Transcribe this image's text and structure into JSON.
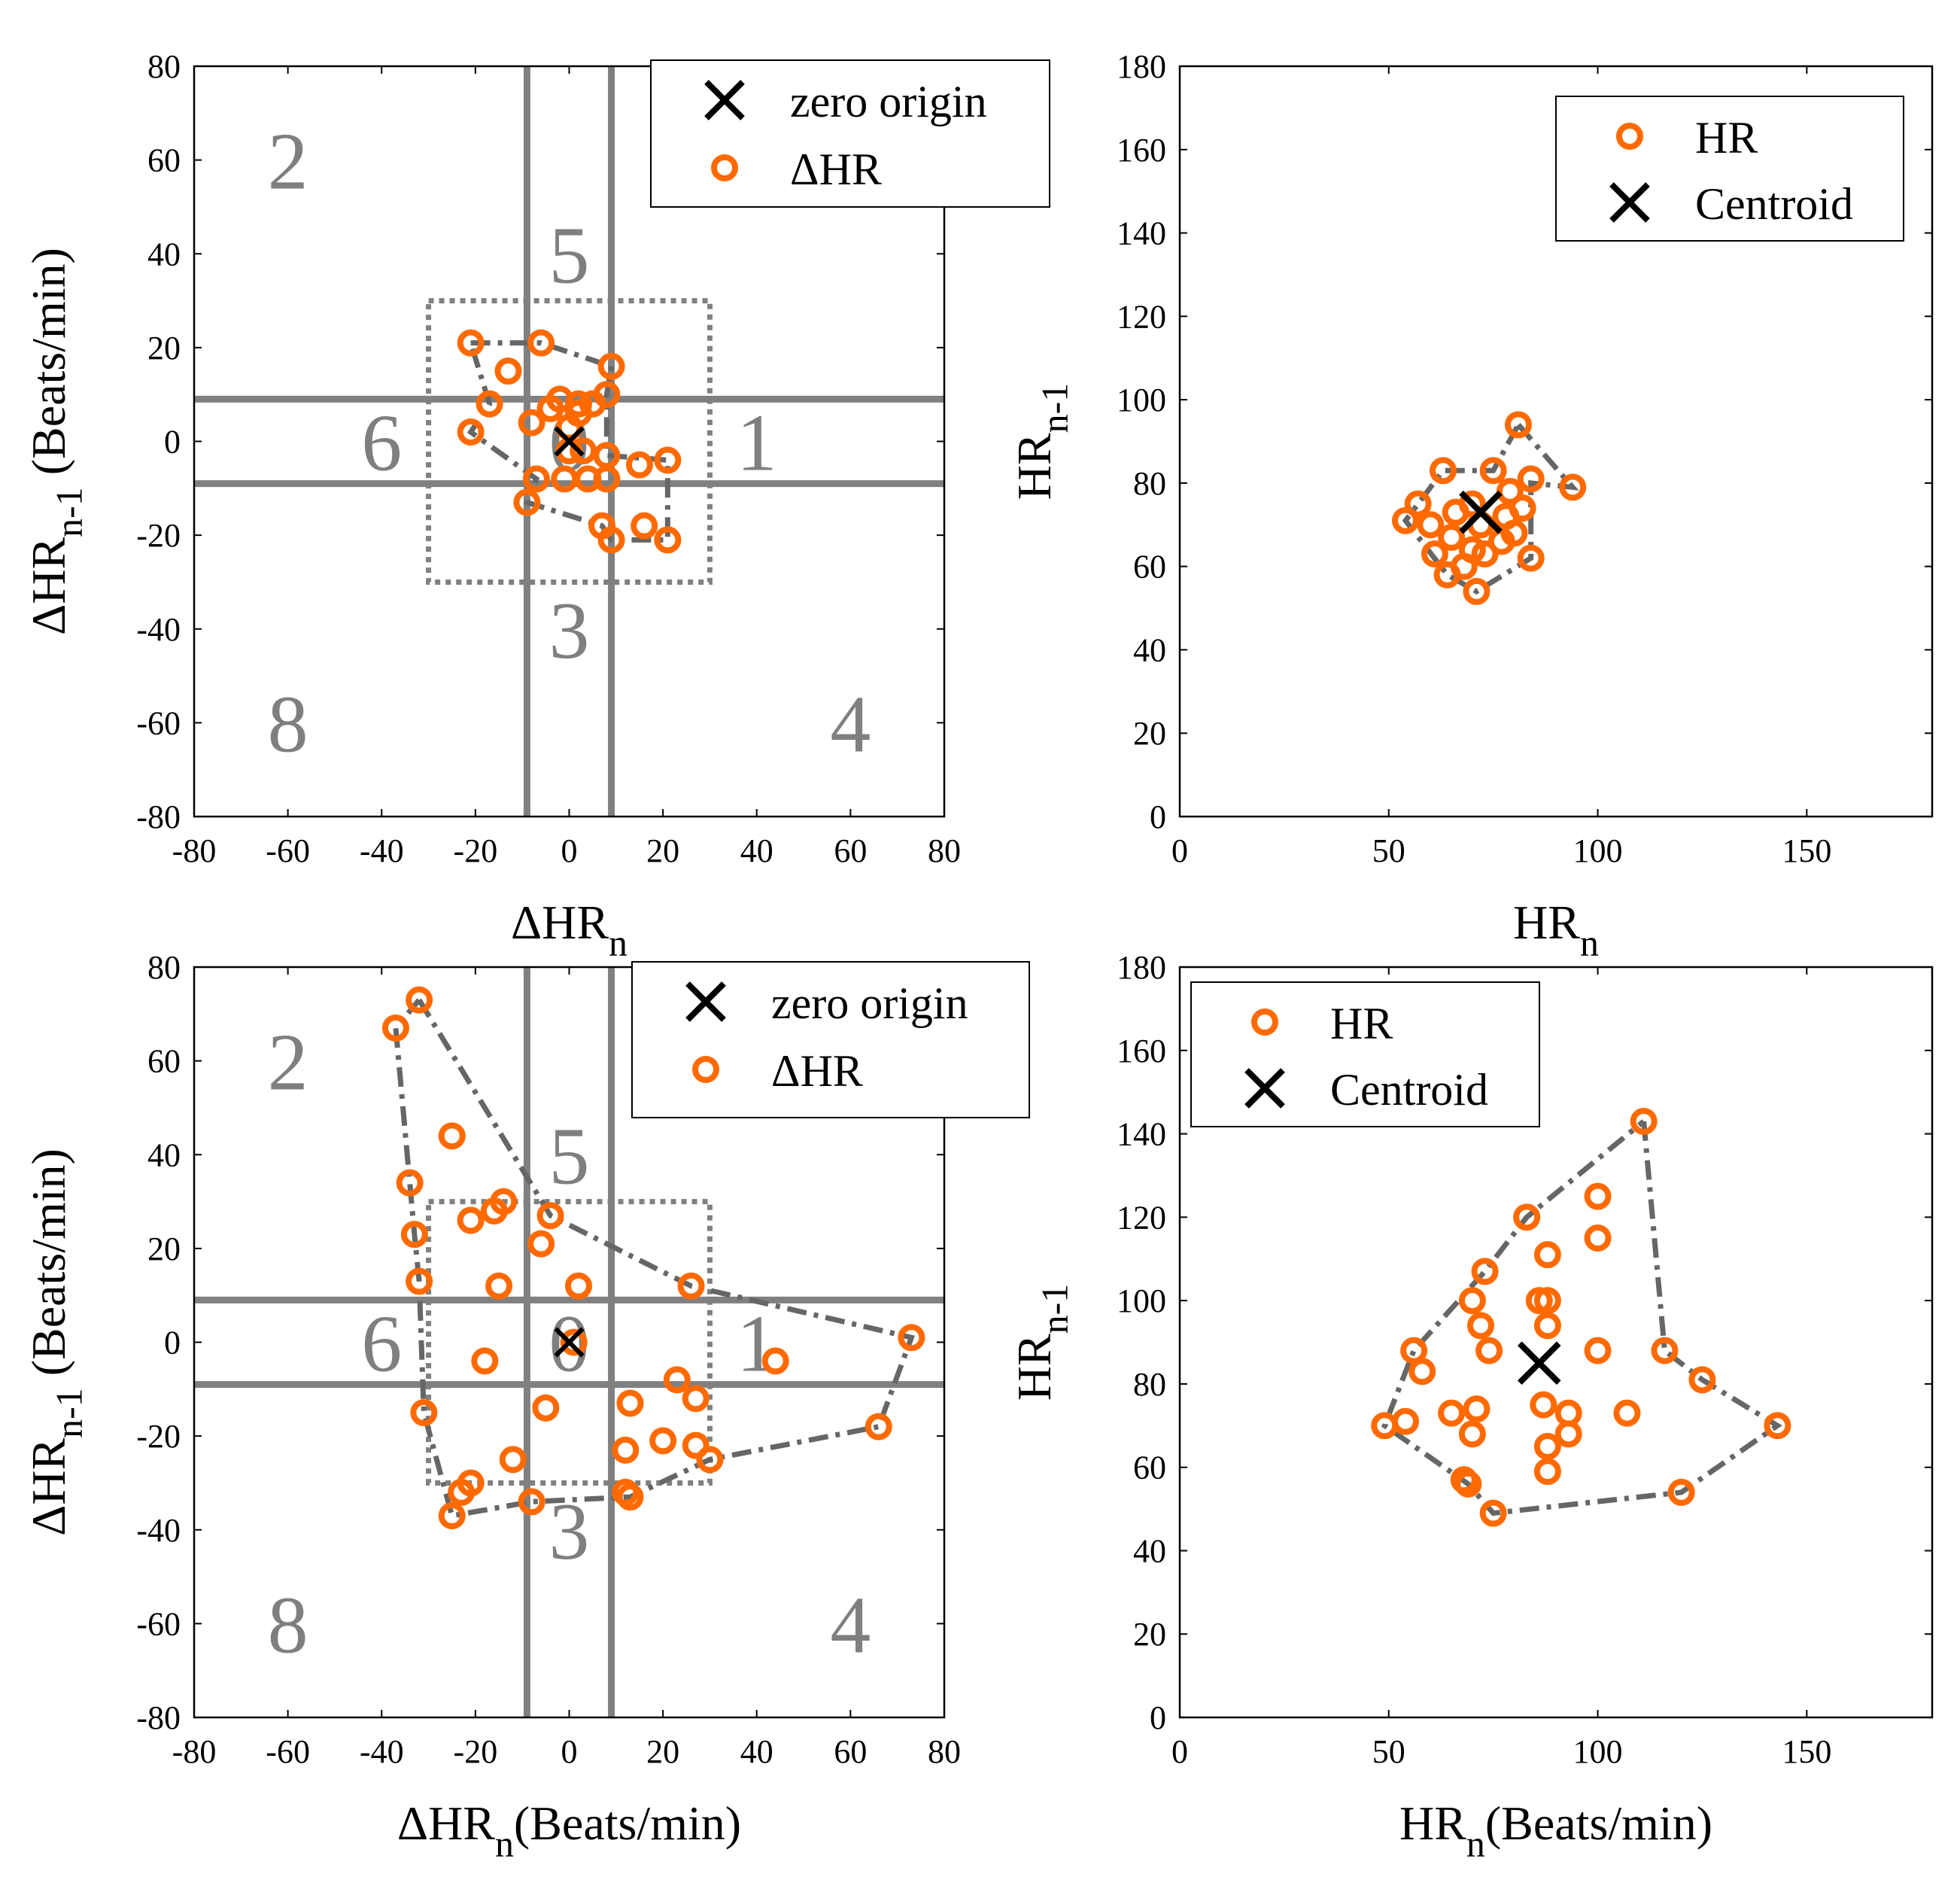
{
  "colors": {
    "marker": "#ff6a00",
    "grid_lines": "#808080",
    "region_labels": "#7f7f7f",
    "hull": "#666666",
    "text": "#000000"
  },
  "chart_data": [
    {
      "id": "top-left",
      "type": "scatter",
      "xlim": [
        -80,
        80
      ],
      "ylim": [
        -80,
        80
      ],
      "xticks": [
        "-80",
        "-60",
        "-40",
        "-20",
        "0",
        "20",
        "40",
        "60",
        "80"
      ],
      "yticks": [
        "-80",
        "-60",
        "-40",
        "-20",
        "0",
        "20",
        "40",
        "60",
        "80"
      ],
      "xlabel": {
        "main": "ΔHR",
        "sub": "n",
        "suffix": ""
      },
      "ylabel": {
        "main": "ΔHR",
        "sub": "n-1",
        "suffix": " (Beats/min)"
      },
      "legend": {
        "position": "top-right",
        "items": [
          {
            "label": "zero origin",
            "marker": "x"
          },
          {
            "label": "ΔHR",
            "marker": "circle"
          }
        ]
      },
      "region_lines": {
        "x": [
          -9,
          9
        ],
        "y": [
          -9,
          9
        ]
      },
      "dotted_box": [
        -30,
        30,
        -30,
        30
      ],
      "region_labels": [
        {
          "text": "1",
          "x": 40,
          "y": 0
        },
        {
          "text": "2",
          "x": -60,
          "y": 60
        },
        {
          "text": "3",
          "x": 0,
          "y": -40
        },
        {
          "text": "4",
          "x": 60,
          "y": -60
        },
        {
          "text": "5",
          "x": 0,
          "y": 40
        },
        {
          "text": "6",
          "x": -40,
          "y": 0
        },
        {
          "text": "8",
          "x": -60,
          "y": -60
        },
        {
          "text": "0",
          "x": 0,
          "y": 0
        }
      ],
      "marker_x": [
        0,
        0
      ],
      "points": [
        [
          -21,
          21
        ],
        [
          -6,
          21
        ],
        [
          -13,
          15
        ],
        [
          9,
          16
        ],
        [
          -17,
          8
        ],
        [
          -21,
          2
        ],
        [
          -8,
          4
        ],
        [
          -4,
          7
        ],
        [
          -2,
          9
        ],
        [
          2,
          8
        ],
        [
          5,
          8
        ],
        [
          8,
          10
        ],
        [
          2,
          6
        ],
        [
          0,
          3
        ],
        [
          0,
          -2
        ],
        [
          3,
          -2
        ],
        [
          -7,
          -8
        ],
        [
          -9,
          -13
        ],
        [
          -1,
          -8
        ],
        [
          4,
          -8
        ],
        [
          8,
          -3
        ],
        [
          15,
          -5
        ],
        [
          21,
          -4
        ],
        [
          8,
          -8
        ],
        [
          7,
          -18
        ],
        [
          16,
          -18
        ],
        [
          9,
          -21
        ],
        [
          21,
          -21
        ]
      ],
      "hull": [
        [
          -21,
          21
        ],
        [
          -6,
          21
        ],
        [
          9,
          16
        ],
        [
          8,
          10
        ],
        [
          8,
          -3
        ],
        [
          21,
          -4
        ],
        [
          21,
          -21
        ],
        [
          9,
          -21
        ],
        [
          7,
          -18
        ],
        [
          -9,
          -13
        ],
        [
          -7,
          -8
        ],
        [
          -21,
          2
        ],
        [
          -17,
          8
        ],
        [
          -21,
          21
        ]
      ]
    },
    {
      "id": "top-right",
      "type": "scatter",
      "xlim": [
        0,
        180
      ],
      "ylim": [
        0,
        180
      ],
      "xticks": [
        "0",
        "50",
        "100",
        "150"
      ],
      "yticks": [
        "0",
        "20",
        "40",
        "60",
        "80",
        "100",
        "120",
        "140",
        "160",
        "180"
      ],
      "xlabel": {
        "main": "HR",
        "sub": "n",
        "suffix": ""
      },
      "ylabel": {
        "main": "HR",
        "sub": "n-1",
        "suffix": ""
      },
      "legend": {
        "position": "top-right",
        "items": [
          {
            "label": "HR",
            "marker": "circle"
          },
          {
            "label": "Centroid",
            "marker": "x"
          }
        ]
      },
      "marker_x": [
        72,
        73
      ],
      "points": [
        [
          81,
          94
        ],
        [
          63,
          83
        ],
        [
          75,
          83
        ],
        [
          57,
          75
        ],
        [
          70,
          75
        ],
        [
          79,
          78
        ],
        [
          84,
          81
        ],
        [
          94,
          79
        ],
        [
          54,
          71
        ],
        [
          60,
          70
        ],
        [
          66,
          73
        ],
        [
          72,
          70
        ],
        [
          78,
          72
        ],
        [
          82,
          74
        ],
        [
          65,
          67
        ],
        [
          70,
          64
        ],
        [
          73,
          63
        ],
        [
          77,
          66
        ],
        [
          80,
          68
        ],
        [
          61,
          63
        ],
        [
          64,
          58
        ],
        [
          71,
          54
        ],
        [
          84,
          62
        ],
        [
          68,
          60
        ]
      ],
      "hull": [
        [
          81,
          94
        ],
        [
          94,
          79
        ],
        [
          84,
          80
        ],
        [
          84,
          62
        ],
        [
          71,
          54
        ],
        [
          64,
          58
        ],
        [
          54,
          71
        ],
        [
          57,
          75
        ],
        [
          63,
          83
        ],
        [
          75,
          83
        ],
        [
          81,
          94
        ]
      ]
    },
    {
      "id": "bottom-left",
      "type": "scatter",
      "xlim": [
        -80,
        80
      ],
      "ylim": [
        -80,
        80
      ],
      "xticks": [
        "-80",
        "-60",
        "-40",
        "-20",
        "0",
        "20",
        "40",
        "60",
        "80"
      ],
      "yticks": [
        "-80",
        "-60",
        "-40",
        "-20",
        "0",
        "20",
        "40",
        "60",
        "80"
      ],
      "xlabel": {
        "main": "ΔHR",
        "sub": "n",
        "suffix": "(Beats/min)"
      },
      "ylabel": {
        "main": "ΔHR",
        "sub": "n-1",
        "suffix": " (Beats/min)"
      },
      "legend": {
        "position": "top-right",
        "items": [
          {
            "label": "zero origin",
            "marker": "x"
          },
          {
            "label": "ΔHR",
            "marker": "circle"
          }
        ]
      },
      "region_lines": {
        "x": [
          -9,
          9
        ],
        "y": [
          -9,
          9
        ]
      },
      "dotted_box": [
        -30,
        30,
        -30,
        30
      ],
      "region_labels": [
        {
          "text": "1",
          "x": 40,
          "y": 0
        },
        {
          "text": "2",
          "x": -60,
          "y": 60
        },
        {
          "text": "3",
          "x": 0,
          "y": -40
        },
        {
          "text": "4",
          "x": 60,
          "y": -60
        },
        {
          "text": "5",
          "x": 0,
          "y": 40
        },
        {
          "text": "6",
          "x": -40,
          "y": 0
        },
        {
          "text": "8",
          "x": -60,
          "y": -60
        },
        {
          "text": "0",
          "x": 0,
          "y": 0
        }
      ],
      "marker_x": [
        0,
        0
      ],
      "points": [
        [
          -32,
          73
        ],
        [
          -37,
          67
        ],
        [
          -25,
          44
        ],
        [
          -34,
          34
        ],
        [
          -33,
          23
        ],
        [
          -32,
          13
        ],
        [
          -21,
          26
        ],
        [
          -16,
          28
        ],
        [
          -14,
          30
        ],
        [
          -4,
          27
        ],
        [
          -6,
          21
        ],
        [
          -15,
          12
        ],
        [
          2,
          12
        ],
        [
          26,
          12
        ],
        [
          73,
          1
        ],
        [
          44,
          -4
        ],
        [
          -18,
          -4
        ],
        [
          1,
          0
        ],
        [
          -5,
          -14
        ],
        [
          13,
          -13
        ],
        [
          23,
          -8
        ],
        [
          27,
          -12
        ],
        [
          20,
          -21
        ],
        [
          27,
          -22
        ],
        [
          30,
          -25
        ],
        [
          12,
          -23
        ],
        [
          -31,
          -15
        ],
        [
          -12,
          -25
        ],
        [
          -21,
          -30
        ],
        [
          -23,
          -32
        ],
        [
          -25,
          -37
        ],
        [
          -8,
          -34
        ],
        [
          12,
          -32
        ],
        [
          13,
          -33
        ],
        [
          66,
          -18
        ]
      ],
      "hull": [
        [
          -32,
          73
        ],
        [
          -4,
          27
        ],
        [
          26,
          12
        ],
        [
          73,
          1
        ],
        [
          66,
          -18
        ],
        [
          30,
          -25
        ],
        [
          13,
          -33
        ],
        [
          -8,
          -34
        ],
        [
          -25,
          -37
        ],
        [
          -31,
          -15
        ],
        [
          -32,
          13
        ],
        [
          -33,
          23
        ],
        [
          -34,
          34
        ],
        [
          -37,
          67
        ],
        [
          -32,
          73
        ]
      ]
    },
    {
      "id": "bottom-right",
      "type": "scatter",
      "xlim": [
        0,
        180
      ],
      "ylim": [
        0,
        180
      ],
      "xticks": [
        "0",
        "50",
        "100",
        "150"
      ],
      "yticks": [
        "0",
        "20",
        "40",
        "60",
        "80",
        "100",
        "120",
        "140",
        "160",
        "180"
      ],
      "xlabel": {
        "main": "HR",
        "sub": "n",
        "suffix": "(Beats/min)"
      },
      "ylabel": {
        "main": "HR",
        "sub": "n-1",
        "suffix": ""
      },
      "legend": {
        "position": "top-left",
        "items": [
          {
            "label": "HR",
            "marker": "circle"
          },
          {
            "label": "Centroid",
            "marker": "x"
          }
        ]
      },
      "marker_x": [
        86,
        85
      ],
      "points": [
        [
          111,
          143
        ],
        [
          100,
          125
        ],
        [
          83,
          120
        ],
        [
          100,
          115
        ],
        [
          88,
          111
        ],
        [
          73,
          107
        ],
        [
          70,
          100
        ],
        [
          86,
          100
        ],
        [
          88,
          100
        ],
        [
          72,
          94
        ],
        [
          88,
          94
        ],
        [
          56,
          88
        ],
        [
          74,
          88
        ],
        [
          100,
          88
        ],
        [
          116,
          88
        ],
        [
          58,
          83
        ],
        [
          125,
          81
        ],
        [
          87,
          75
        ],
        [
          93,
          73
        ],
        [
          65,
          73
        ],
        [
          71,
          74
        ],
        [
          107,
          73
        ],
        [
          49,
          70
        ],
        [
          54,
          71
        ],
        [
          70,
          68
        ],
        [
          93,
          68
        ],
        [
          143,
          70
        ],
        [
          88,
          65
        ],
        [
          68,
          57
        ],
        [
          69,
          56
        ],
        [
          88,
          59
        ],
        [
          120,
          54
        ],
        [
          75,
          49
        ]
      ],
      "hull": [
        [
          111,
          143
        ],
        [
          116,
          88
        ],
        [
          125,
          81
        ],
        [
          143,
          70
        ],
        [
          120,
          54
        ],
        [
          75,
          49
        ],
        [
          69,
          56
        ],
        [
          49,
          70
        ],
        [
          56,
          88
        ],
        [
          73,
          107
        ],
        [
          83,
          120
        ],
        [
          111,
          143
        ]
      ]
    }
  ]
}
